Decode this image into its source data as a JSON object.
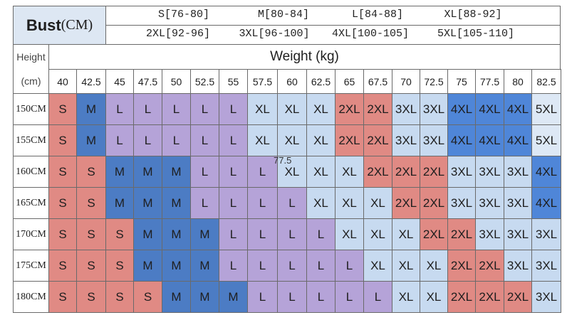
{
  "header": {
    "bust_label": "Bust",
    "bust_unit": "(CM)",
    "bust_sizes": [
      [
        "S[76-80]",
        "M[80-84]",
        "L[84-88]",
        "XL[88-92]"
      ],
      [
        "2XL[92-96]",
        "3XL[96-100]",
        "4XL[100-105]",
        "5XL[105-110]"
      ]
    ]
  },
  "table": {
    "height_label": "Height",
    "height_unit": "(cm)",
    "weight_label": "Weight (kg)",
    "weights": [
      "40",
      "42.5",
      "45",
      "47.5",
      "50",
      "52.5",
      "55",
      "57.5",
      "60",
      "62.5",
      "65",
      "67.5",
      "70",
      "72.5",
      "75",
      "77.5",
      "80",
      "82.5"
    ],
    "rows": [
      {
        "height": "150CM",
        "sizes": [
          "S",
          "M",
          "L",
          "L",
          "L",
          "L",
          "L",
          "XL",
          "XL",
          "XL",
          "2XL",
          "2XL",
          "3XL",
          "3XL",
          "4XL",
          "4XL",
          "4XL",
          "5XL"
        ]
      },
      {
        "height": "155CM",
        "sizes": [
          "S",
          "M",
          "L",
          "L",
          "L",
          "L",
          "L",
          "XL",
          "XL",
          "XL",
          "2XL",
          "2XL",
          "3XL",
          "3XL",
          "4XL",
          "4XL",
          "4XL",
          "5XL"
        ]
      },
      {
        "height": "160CM",
        "sizes": [
          "S",
          "S",
          "M",
          "M",
          "M",
          "L",
          "L",
          "L",
          "XL",
          "XL",
          "XL",
          "2XL",
          "2XL",
          "2XL",
          "3XL",
          "3XL",
          "3XL",
          "4XL"
        ]
      },
      {
        "height": "165CM",
        "sizes": [
          "S",
          "S",
          "M",
          "M",
          "M",
          "L",
          "L",
          "L",
          "L",
          "XL",
          "XL",
          "XL",
          "2XL",
          "2XL",
          "3XL",
          "3XL",
          "3XL",
          "4XL"
        ]
      },
      {
        "height": "170CM",
        "sizes": [
          "S",
          "S",
          "S",
          "M",
          "M",
          "M",
          "L",
          "L",
          "L",
          "L",
          "XL",
          "XL",
          "XL",
          "2XL",
          "2XL",
          "3XL",
          "3XL",
          "3XL"
        ]
      },
      {
        "height": "175CM",
        "sizes": [
          "S",
          "S",
          "S",
          "M",
          "M",
          "M",
          "L",
          "L",
          "L",
          "L",
          "L",
          "XL",
          "XL",
          "XL",
          "2XL",
          "2XL",
          "3XL",
          "3XL"
        ]
      },
      {
        "height": "180CM",
        "sizes": [
          "S",
          "S",
          "S",
          "S",
          "M",
          "M",
          "M",
          "L",
          "L",
          "L",
          "L",
          "L",
          "XL",
          "XL",
          "2XL",
          "2XL",
          "2XL",
          "3XL"
        ]
      }
    ]
  },
  "overlay_text": "77.5",
  "size_colors": {
    "S": "#e08a84",
    "M": "#4c7cc4",
    "L": "#b5a3d8",
    "XL": "#c7daf0",
    "2XL": "#e08a84",
    "3XL": "#c7daf0",
    "4XL": "#4f86d8",
    "5XL": "#dde8f5"
  }
}
